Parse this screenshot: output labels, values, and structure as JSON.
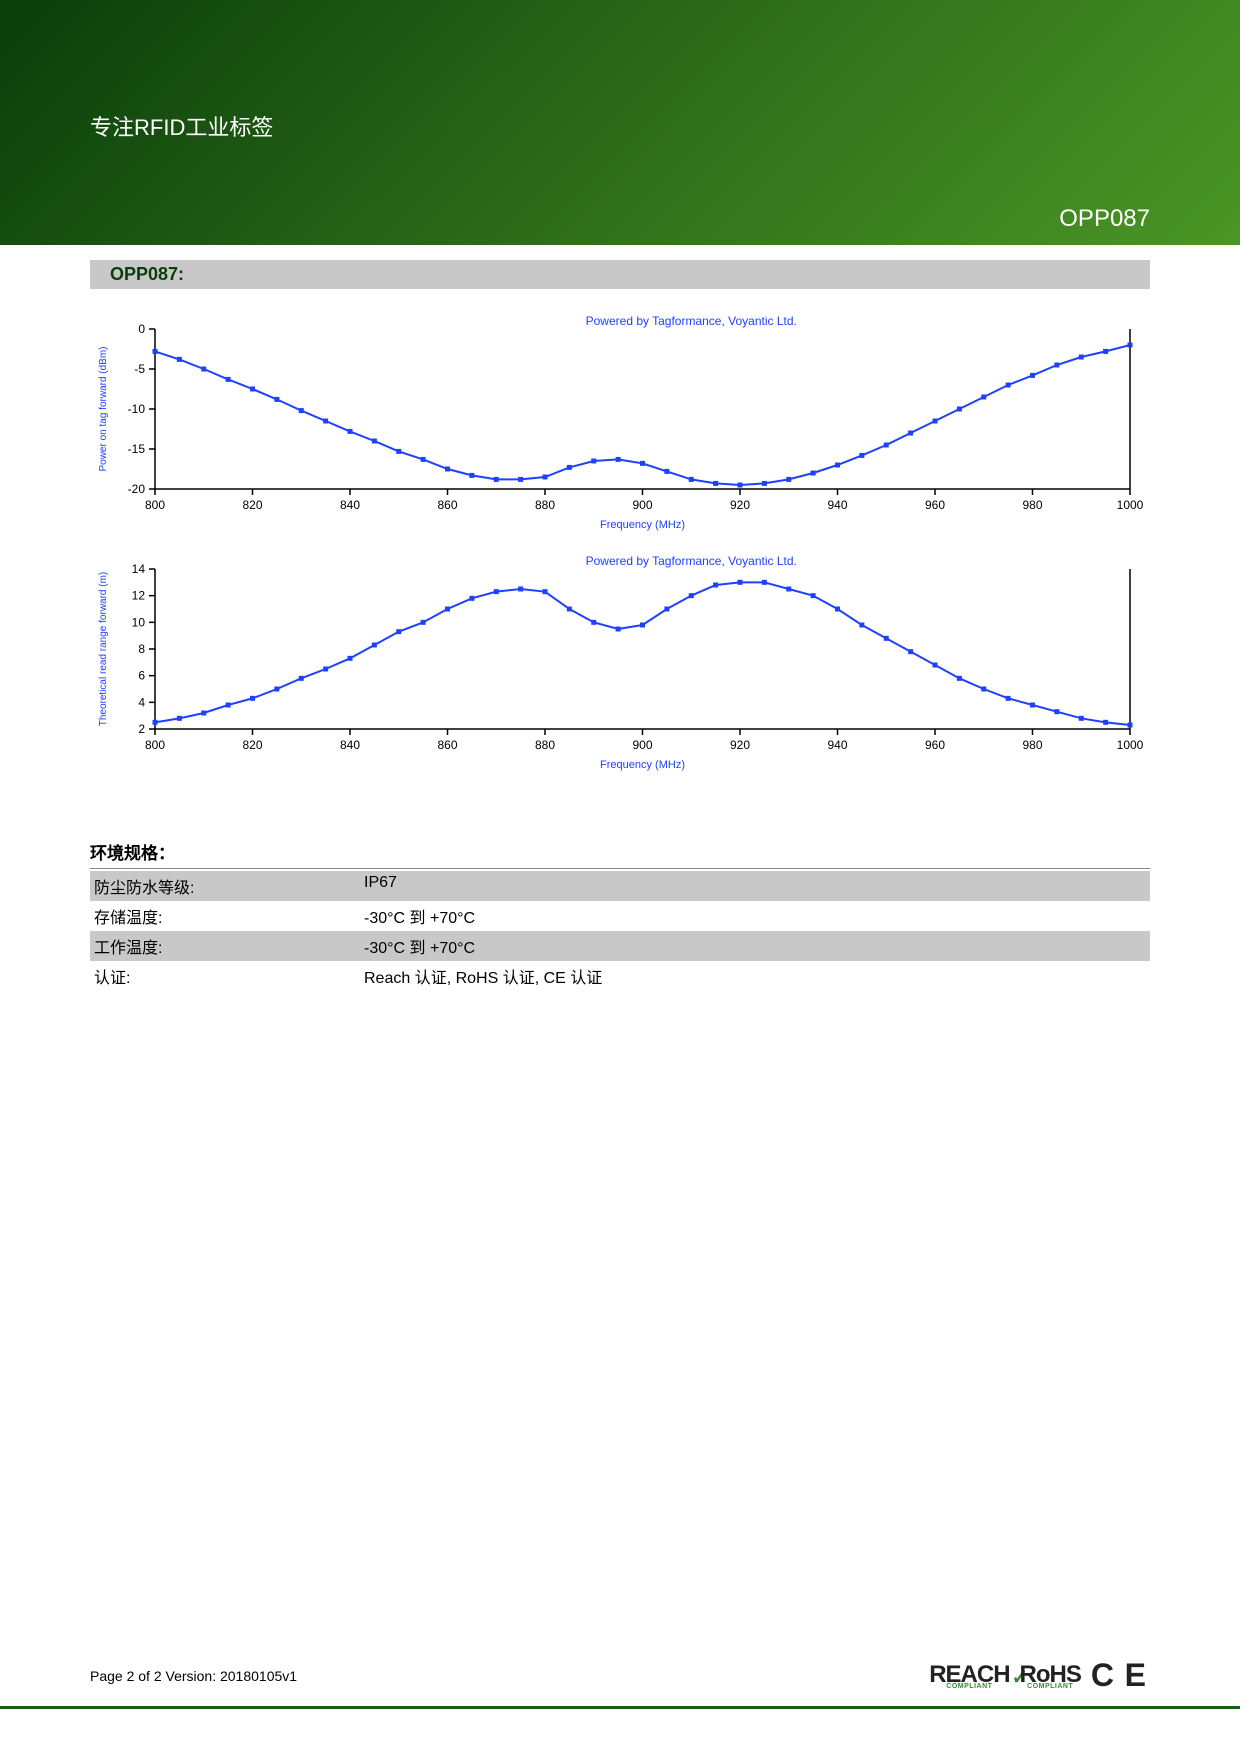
{
  "header": {
    "title": "专注RFID工业标签",
    "code": "OPP087",
    "bg_gradient": [
      "#0a3d0a",
      "#2d6b1a",
      "#4a9625"
    ]
  },
  "section_title": "OPP087:",
  "chart1": {
    "type": "line",
    "powered_by": "Powered by Tagformance, Voyantic Ltd.",
    "xlabel": "Frequency (MHz)",
    "ylabel": "Power on tag forward (dBm)",
    "xlim": [
      800,
      1000
    ],
    "ylim": [
      -20,
      0
    ],
    "xtick_step": 20,
    "ytick_step": 5,
    "xticks": [
      800,
      820,
      840,
      860,
      880,
      900,
      920,
      940,
      960,
      980,
      1000
    ],
    "yticks": [
      -20,
      -15,
      -10,
      -5,
      0
    ],
    "x": [
      800,
      805,
      810,
      815,
      820,
      825,
      830,
      835,
      840,
      845,
      850,
      855,
      860,
      865,
      870,
      875,
      880,
      885,
      890,
      895,
      900,
      905,
      910,
      915,
      920,
      925,
      930,
      935,
      940,
      945,
      950,
      955,
      960,
      965,
      970,
      975,
      980,
      985,
      990,
      995,
      1000
    ],
    "y": [
      -2.8,
      -3.8,
      -5.0,
      -6.3,
      -7.5,
      -8.8,
      -10.2,
      -11.5,
      -12.8,
      -14.0,
      -15.3,
      -16.3,
      -17.5,
      -18.3,
      -18.8,
      -18.8,
      -18.5,
      -17.3,
      -16.5,
      -16.3,
      -16.8,
      -17.8,
      -18.8,
      -19.3,
      -19.5,
      -19.3,
      -18.8,
      -18.0,
      -17.0,
      -15.8,
      -14.5,
      -13.0,
      -11.5,
      -10.0,
      -8.5,
      -7.0,
      -5.8,
      -4.5,
      -3.5,
      -2.8,
      -2.0
    ],
    "line_color": "#2040ff",
    "marker_color": "#2040ff",
    "marker_style": "square",
    "marker_size": 5,
    "line_width": 2,
    "background_color": "#ffffff",
    "axis_color": "#000000",
    "label_fontsize": 11,
    "tick_fontsize": 12
  },
  "chart2": {
    "type": "line",
    "powered_by": "Powered by Tagformance, Voyantic Ltd.",
    "xlabel": "Frequency (MHz)",
    "ylabel": "Theoretical read range forward (m)",
    "xlim": [
      800,
      1000
    ],
    "ylim": [
      2,
      14
    ],
    "xtick_step": 20,
    "ytick_step": 2,
    "xticks": [
      800,
      820,
      840,
      860,
      880,
      900,
      920,
      940,
      960,
      980,
      1000
    ],
    "yticks": [
      2,
      4,
      6,
      8,
      10,
      12,
      14
    ],
    "x": [
      800,
      805,
      810,
      815,
      820,
      825,
      830,
      835,
      840,
      845,
      850,
      855,
      860,
      865,
      870,
      875,
      880,
      885,
      890,
      895,
      900,
      905,
      910,
      915,
      920,
      925,
      930,
      935,
      940,
      945,
      950,
      955,
      960,
      965,
      970,
      975,
      980,
      985,
      990,
      995,
      1000
    ],
    "y": [
      2.5,
      2.8,
      3.2,
      3.8,
      4.3,
      5.0,
      5.8,
      6.5,
      7.3,
      8.3,
      9.3,
      10.0,
      11.0,
      11.8,
      12.3,
      12.5,
      12.3,
      11.0,
      10.0,
      9.5,
      9.8,
      11.0,
      12.0,
      12.8,
      13.0,
      13.0,
      12.5,
      12.0,
      11.0,
      9.8,
      8.8,
      7.8,
      6.8,
      5.8,
      5.0,
      4.3,
      3.8,
      3.3,
      2.8,
      2.5,
      2.3
    ],
    "line_color": "#2040ff",
    "marker_color": "#2040ff",
    "marker_style": "square",
    "marker_size": 5,
    "line_width": 2,
    "background_color": "#ffffff",
    "axis_color": "#000000",
    "label_fontsize": 11,
    "tick_fontsize": 12
  },
  "spec": {
    "heading": "环境规格：",
    "rows": [
      {
        "label": "防尘防水等级:",
        "value": "IP67",
        "shaded": true
      },
      {
        "label": "存储温度:",
        "value": "-30°C 到 +70°C",
        "shaded": false
      },
      {
        "label": "工作温度:",
        "value": "-30°C 到 +70°C",
        "shaded": true
      },
      {
        "label": "认证:",
        "value": "Reach 认证, RoHS 认证, CE 认证",
        "shaded": false
      }
    ]
  },
  "footer": {
    "page_text": "Page 2 of 2  Version: 20180105v1",
    "logos": {
      "reach": "REACH",
      "reach_sub": "COMPLIANT",
      "rohs": "RoHS",
      "rohs_sub": "COMPLIANT",
      "ce": "CE"
    }
  }
}
